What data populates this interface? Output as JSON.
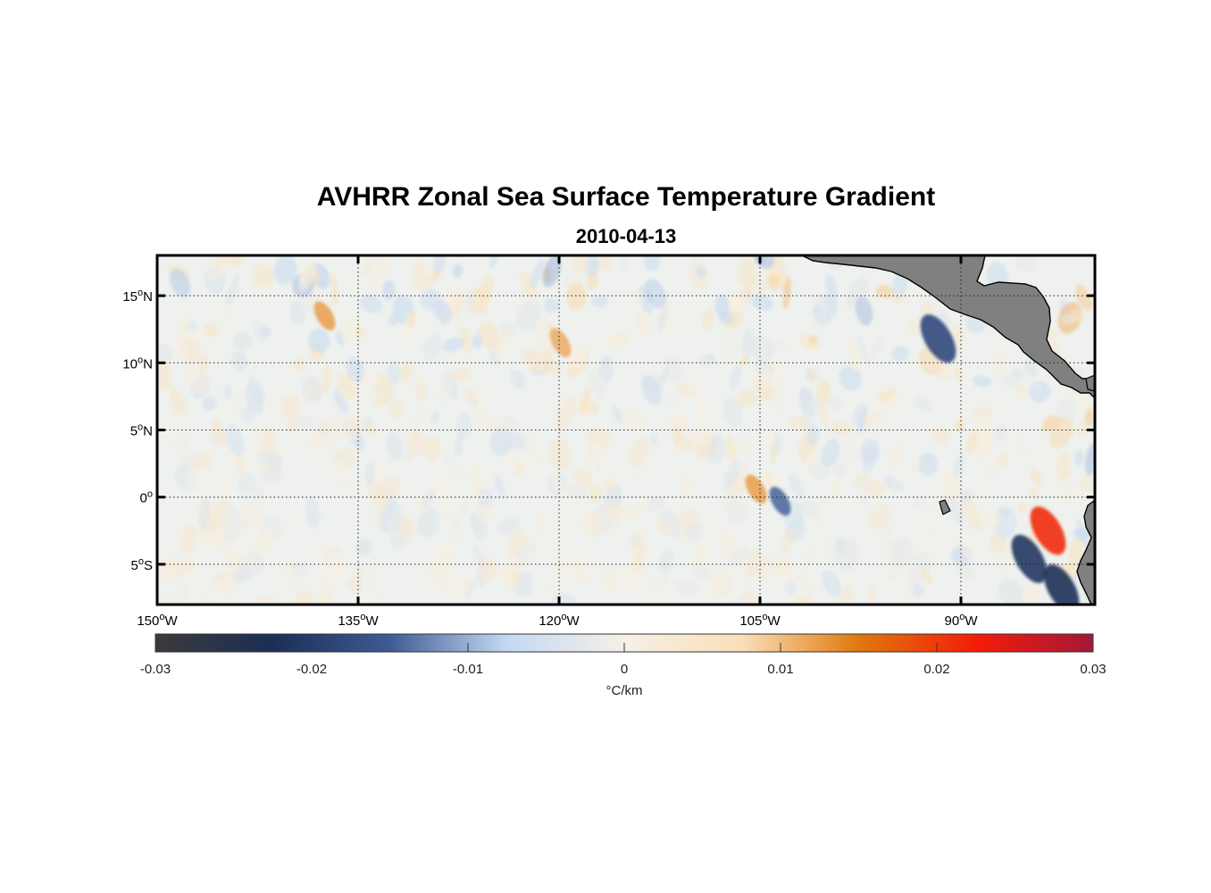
{
  "title": "AVHRR Zonal Sea Surface Temperature Gradient",
  "subtitle": "2010-04-13",
  "map": {
    "lon_range": [
      -150,
      -80
    ],
    "lat_range": [
      -8,
      18
    ],
    "lon_grid": [
      -150,
      -135,
      -120,
      -105,
      -90
    ],
    "lat_grid": [
      15,
      10,
      5,
      0,
      -5
    ],
    "lon_labels": [
      {
        "num": "150",
        "hemi": "W"
      },
      {
        "num": "135",
        "hemi": "W"
      },
      {
        "num": "120",
        "hemi": "W"
      },
      {
        "num": "105",
        "hemi": "W"
      },
      {
        "num": "90",
        "hemi": "W"
      }
    ],
    "lat_labels": [
      {
        "num": "15",
        "hemi": "N"
      },
      {
        "num": "10",
        "hemi": "N"
      },
      {
        "num": "5",
        "hemi": "N"
      },
      {
        "num": "0",
        "hemi": ""
      },
      {
        "num": "5",
        "hemi": "S"
      }
    ],
    "land_color": "#808080",
    "grid_style": "dotted"
  },
  "colorbar": {
    "range": [
      -0.03,
      0.03
    ],
    "ticks": [
      -0.03,
      -0.02,
      -0.01,
      0,
      0.01,
      0.02,
      0.03
    ],
    "tick_labels": [
      "-0.03",
      "-0.02",
      "-0.01",
      "0",
      "0.01",
      "0.02",
      "0.03"
    ],
    "label": "°C/km",
    "colors": [
      "#3a3a3a",
      "#1c2e56",
      "#3e5b94",
      "#c4d9f2",
      "#f6f0e6",
      "#f9e0b9",
      "#e0780e",
      "#f41c08",
      "#a3183a"
    ]
  },
  "chart_data": {
    "type": "heatmap",
    "title": "AVHRR Zonal Sea Surface Temperature Gradient",
    "subtitle": "2010-04-13",
    "xlabel": "",
    "ylabel": "",
    "xlim": [
      -150,
      -80
    ],
    "ylim": [
      -8,
      18
    ],
    "units": "°C/km",
    "value_range": [
      -0.03,
      0.03
    ],
    "notable_features": [
      {
        "lon": -137.5,
        "lat": 13.5,
        "value": 0.012
      },
      {
        "lon": -119.9,
        "lat": 11.5,
        "value": 0.011
      },
      {
        "lon": -105.3,
        "lat": 0.6,
        "value": 0.012
      },
      {
        "lon": -103.5,
        "lat": -0.3,
        "value": -0.014
      },
      {
        "lon": -91.7,
        "lat": 11.8,
        "value": -0.018
      },
      {
        "lon": -83.5,
        "lat": -2.5,
        "value": 0.021
      },
      {
        "lon": -84.9,
        "lat": -4.6,
        "value": -0.021
      },
      {
        "lon": -82.5,
        "lat": -6.8,
        "value": -0.022
      }
    ]
  }
}
